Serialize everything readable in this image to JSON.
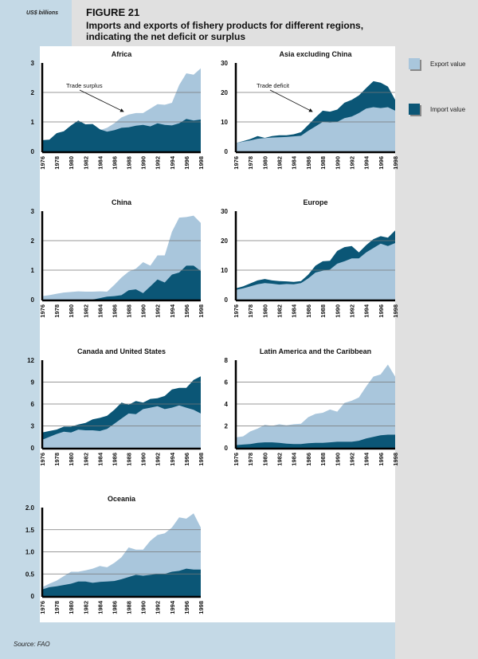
{
  "header": {
    "unit_label": "US$ billions",
    "figure_number": "FIGURE 21",
    "title": "Imports and exports of fishery products for different regions, indicating the net deficit or surplus"
  },
  "legend": {
    "items": [
      {
        "label": "Export value",
        "color": "#a9c6dc"
      },
      {
        "label": "Import value",
        "color": "#0b5676"
      }
    ]
  },
  "source": "Source: FAO",
  "chart_data": [
    {
      "type": "area",
      "title": "Africa",
      "ylim": [
        0,
        3
      ],
      "yticks": [
        "0",
        "1",
        "2",
        "3"
      ],
      "ytick_values": [
        0,
        1,
        2,
        3
      ],
      "x": [
        1976,
        1977,
        1978,
        1979,
        1980,
        1981,
        1982,
        1983,
        1984,
        1985,
        1986,
        1987,
        1988,
        1989,
        1990,
        1991,
        1992,
        1993,
        1994,
        1995,
        1996,
        1997,
        1998
      ],
      "xticks": [
        "1976",
        "1978",
        "1980",
        "1982",
        "1984",
        "1986",
        "1988",
        "1990",
        "1992",
        "1994",
        "1996",
        "1998"
      ],
      "series": [
        {
          "name": "Export value",
          "values": [
            0.3,
            0.35,
            0.5,
            0.55,
            0.65,
            0.7,
            0.68,
            0.7,
            0.72,
            0.8,
            0.95,
            1.15,
            1.25,
            1.3,
            1.3,
            1.45,
            1.6,
            1.58,
            1.65,
            2.25,
            2.65,
            2.6,
            2.82
          ]
        },
        {
          "name": "Import value",
          "values": [
            0.38,
            0.4,
            0.62,
            0.68,
            0.88,
            1.05,
            0.92,
            0.93,
            0.75,
            0.67,
            0.72,
            0.8,
            0.82,
            0.87,
            0.9,
            0.85,
            0.95,
            0.9,
            0.88,
            0.95,
            1.1,
            1.05,
            1.08
          ]
        }
      ],
      "annotation": "Trade surplus"
    },
    {
      "type": "area",
      "title": "Asia excluding China",
      "ylim": [
        0,
        30
      ],
      "yticks": [
        "0",
        "10",
        "20",
        "30"
      ],
      "ytick_values": [
        0,
        10,
        20,
        30
      ],
      "x": [
        1976,
        1977,
        1978,
        1979,
        1980,
        1981,
        1982,
        1983,
        1984,
        1985,
        1986,
        1987,
        1988,
        1989,
        1990,
        1991,
        1992,
        1993,
        1994,
        1995,
        1996,
        1997,
        1998
      ],
      "xticks": [
        "1976",
        "1978",
        "1980",
        "1982",
        "1984",
        "1986",
        "1988",
        "1990",
        "1992",
        "1994",
        "1996",
        "1998"
      ],
      "series": [
        {
          "name": "Export value",
          "values": [
            2.8,
            3.3,
            3.7,
            4.3,
            4.5,
            4.7,
            4.8,
            4.9,
            5.1,
            5.3,
            7,
            8.5,
            10,
            9.8,
            10,
            11.3,
            11.8,
            13,
            14.5,
            15,
            14.7,
            15,
            13.8
          ]
        },
        {
          "name": "Import value",
          "values": [
            2.8,
            3.5,
            4.2,
            5.2,
            4.6,
            5.2,
            5.5,
            5.5,
            5.8,
            6.5,
            9,
            11.5,
            13.8,
            13.5,
            14.2,
            16.5,
            17.5,
            19,
            21.5,
            23.8,
            23.3,
            22,
            17.5
          ]
        }
      ],
      "annotation": "Trade deficit"
    },
    {
      "type": "area",
      "title": "China",
      "ylim": [
        0,
        3
      ],
      "yticks": [
        "0",
        "1",
        "2",
        "3"
      ],
      "ytick_values": [
        0,
        1,
        2,
        3
      ],
      "x": [
        1976,
        1977,
        1978,
        1979,
        1980,
        1981,
        1982,
        1983,
        1984,
        1985,
        1986,
        1987,
        1988,
        1989,
        1990,
        1991,
        1992,
        1993,
        1994,
        1995,
        1996,
        1997,
        1998
      ],
      "xticks": [
        "1976",
        "1978",
        "1980",
        "1982",
        "1984",
        "1986",
        "1988",
        "1990",
        "1992",
        "1994",
        "1996",
        "1998"
      ],
      "series": [
        {
          "name": "Export value",
          "values": [
            0.12,
            0.15,
            0.2,
            0.24,
            0.26,
            0.28,
            0.27,
            0.27,
            0.28,
            0.27,
            0.5,
            0.75,
            0.95,
            1.05,
            1.27,
            1.15,
            1.5,
            1.5,
            2.3,
            2.78,
            2.8,
            2.85,
            2.6
          ]
        },
        {
          "name": "Import value",
          "values": [
            0,
            0,
            0,
            0,
            0,
            0,
            0,
            0,
            0.05,
            0.1,
            0.12,
            0.15,
            0.32,
            0.35,
            0.22,
            0.45,
            0.68,
            0.58,
            0.85,
            0.92,
            1.15,
            1.15,
            0.97
          ]
        }
      ]
    },
    {
      "type": "area",
      "title": "Europe",
      "ylim": [
        0,
        30
      ],
      "yticks": [
        "0",
        "10",
        "20",
        "30"
      ],
      "ytick_values": [
        0,
        10,
        20,
        30
      ],
      "x": [
        1976,
        1977,
        1978,
        1979,
        1980,
        1981,
        1982,
        1983,
        1984,
        1985,
        1986,
        1987,
        1988,
        1989,
        1990,
        1991,
        1992,
        1993,
        1994,
        1995,
        1996,
        1997,
        1998
      ],
      "xticks": [
        "1976",
        "1978",
        "1980",
        "1982",
        "1984",
        "1986",
        "1988",
        "1990",
        "1992",
        "1994",
        "1996",
        "1998"
      ],
      "series": [
        {
          "name": "Export value",
          "values": [
            3.3,
            3.8,
            4.5,
            5.2,
            5.6,
            5.4,
            5.1,
            5.3,
            5.2,
            5.6,
            7.2,
            9.2,
            9.8,
            10.2,
            12.2,
            13,
            14,
            14,
            16,
            17.5,
            19,
            18.2,
            19.2
          ]
        },
        {
          "name": "Import value",
          "values": [
            3.8,
            4.5,
            5.5,
            6.5,
            7.0,
            6.5,
            6.3,
            6.2,
            6,
            6.3,
            8.5,
            11.5,
            13,
            13.2,
            16.5,
            17.8,
            18.2,
            16,
            18.5,
            20.5,
            21.5,
            21,
            23.5
          ]
        }
      ]
    },
    {
      "type": "area",
      "title": "Canada and United States",
      "ylim": [
        0,
        12
      ],
      "yticks": [
        "0",
        "3",
        "6",
        "9",
        "12"
      ],
      "ytick_values": [
        0,
        3,
        6,
        9,
        12
      ],
      "x": [
        1976,
        1977,
        1978,
        1979,
        1980,
        1981,
        1982,
        1983,
        1984,
        1985,
        1986,
        1987,
        1988,
        1989,
        1990,
        1991,
        1992,
        1993,
        1994,
        1995,
        1996,
        1997,
        1998
      ],
      "xticks": [
        "1976",
        "1978",
        "1980",
        "1982",
        "1984",
        "1986",
        "1988",
        "1990",
        "1992",
        "1994",
        "1996",
        "1998"
      ],
      "series": [
        {
          "name": "Export value",
          "values": [
            1.1,
            1.5,
            1.9,
            2.2,
            2.1,
            2.5,
            2.4,
            2.4,
            2.3,
            2.6,
            3.3,
            4.0,
            4.7,
            4.6,
            5.3,
            5.5,
            5.7,
            5.3,
            5.5,
            5.8,
            5.5,
            5.2,
            4.7
          ]
        },
        {
          "name": "Import value",
          "values": [
            2.1,
            2.3,
            2.5,
            2.9,
            2.9,
            3.2,
            3.4,
            3.9,
            4.1,
            4.4,
            5.2,
            6.2,
            5.9,
            6.4,
            6.2,
            6.7,
            6.8,
            7.1,
            8.0,
            8.2,
            8.2,
            9.3,
            9.8
          ]
        }
      ]
    },
    {
      "type": "area",
      "title": "Latin America and the Caribbean",
      "ylim": [
        0,
        8
      ],
      "yticks": [
        "0",
        "2",
        "4",
        "6",
        "8"
      ],
      "ytick_values": [
        0,
        2,
        4,
        6,
        8
      ],
      "x": [
        1976,
        1977,
        1978,
        1979,
        1980,
        1981,
        1982,
        1983,
        1984,
        1985,
        1986,
        1987,
        1988,
        1989,
        1990,
        1991,
        1992,
        1993,
        1994,
        1995,
        1996,
        1997,
        1998
      ],
      "xticks": [
        "1976",
        "1978",
        "1980",
        "1982",
        "1984",
        "1986",
        "1988",
        "1990",
        "1992",
        "1994",
        "1996",
        "1998"
      ],
      "series": [
        {
          "name": "Export value",
          "values": [
            0.95,
            1.05,
            1.5,
            1.75,
            2.1,
            2.0,
            2.15,
            2.05,
            2.15,
            2.2,
            2.8,
            3.1,
            3.2,
            3.5,
            3.3,
            4.1,
            4.3,
            4.6,
            5.6,
            6.5,
            6.7,
            7.6,
            6.5
          ]
        },
        {
          "name": "Import value",
          "values": [
            0.25,
            0.3,
            0.35,
            0.45,
            0.5,
            0.5,
            0.45,
            0.38,
            0.35,
            0.35,
            0.42,
            0.45,
            0.45,
            0.5,
            0.55,
            0.55,
            0.55,
            0.65,
            0.85,
            1.0,
            1.15,
            1.2,
            1.2
          ]
        }
      ]
    },
    {
      "type": "area",
      "title": "Oceania",
      "ylim": [
        0,
        2
      ],
      "yticks": [
        "0",
        "0.5",
        "1.0",
        "1.5",
        "2.0"
      ],
      "ytick_values": [
        0,
        0.5,
        1,
        1.5,
        2
      ],
      "x": [
        1976,
        1977,
        1978,
        1979,
        1980,
        1981,
        1982,
        1983,
        1984,
        1985,
        1986,
        1987,
        1988,
        1989,
        1990,
        1991,
        1992,
        1993,
        1994,
        1995,
        1996,
        1997,
        1998
      ],
      "xticks": [
        "1976",
        "1978",
        "1980",
        "1982",
        "1984",
        "1986",
        "1988",
        "1990",
        "1992",
        "1994",
        "1996",
        "1998"
      ],
      "series": [
        {
          "name": "Export value",
          "values": [
            0.2,
            0.28,
            0.35,
            0.45,
            0.55,
            0.55,
            0.58,
            0.62,
            0.68,
            0.65,
            0.75,
            0.88,
            1.1,
            1.05,
            1.05,
            1.25,
            1.38,
            1.42,
            1.55,
            1.78,
            1.75,
            1.87,
            1.55
          ]
        },
        {
          "name": "Import value",
          "values": [
            0.15,
            0.2,
            0.22,
            0.25,
            0.28,
            0.33,
            0.33,
            0.3,
            0.32,
            0.33,
            0.34,
            0.38,
            0.43,
            0.48,
            0.46,
            0.48,
            0.5,
            0.5,
            0.55,
            0.57,
            0.62,
            0.6,
            0.6
          ]
        }
      ]
    }
  ]
}
